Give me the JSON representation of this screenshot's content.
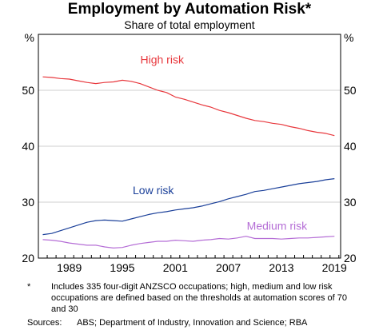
{
  "chart_data": {
    "type": "line",
    "title": "Employment by Automation Risk*",
    "subtitle": "Share of total employment",
    "y_unit_left": "%",
    "y_unit_right": "%",
    "ylim": [
      20,
      60
    ],
    "yticks": [
      "20",
      "30",
      "40",
      "50"
    ],
    "xlim": [
      1986.0,
      2020.2
    ],
    "xticks": [
      "1989",
      "1995",
      "2001",
      "2007",
      "2013",
      "2019"
    ],
    "grid": true,
    "series": [
      {
        "name": "High risk",
        "color": "#e8383d",
        "x": [
          1986.5,
          1987.5,
          1988.5,
          1989.5,
          1990.5,
          1991.5,
          1992.5,
          1993.5,
          1994.5,
          1995.5,
          1996.5,
          1997.5,
          1998.5,
          1999.5,
          2000.5,
          2001.5,
          2002.5,
          2003.5,
          2004.5,
          2005.5,
          2006.5,
          2007.5,
          2008.5,
          2009.5,
          2010.5,
          2011.5,
          2012.5,
          2013.5,
          2014.5,
          2015.5,
          2016.5,
          2017.5,
          2018.5,
          2019.5
        ],
        "values": [
          52.4,
          52.3,
          52.1,
          52.0,
          51.7,
          51.4,
          51.2,
          51.4,
          51.5,
          51.8,
          51.6,
          51.2,
          50.6,
          50.0,
          49.6,
          48.8,
          48.4,
          47.9,
          47.4,
          47.0,
          46.4,
          46.0,
          45.5,
          45.0,
          44.6,
          44.4,
          44.1,
          43.9,
          43.5,
          43.2,
          42.8,
          42.5,
          42.3,
          41.9
        ]
      },
      {
        "name": "Low risk",
        "color": "#1a3f99",
        "x": [
          1986.5,
          1987.5,
          1988.5,
          1989.5,
          1990.5,
          1991.5,
          1992.5,
          1993.5,
          1994.5,
          1995.5,
          1996.5,
          1997.5,
          1998.5,
          1999.5,
          2000.5,
          2001.5,
          2002.5,
          2003.5,
          2004.5,
          2005.5,
          2006.5,
          2007.5,
          2008.5,
          2009.5,
          2010.5,
          2011.5,
          2012.5,
          2013.5,
          2014.5,
          2015.5,
          2016.5,
          2017.5,
          2018.5,
          2019.5
        ],
        "values": [
          24.2,
          24.4,
          24.9,
          25.4,
          25.9,
          26.4,
          26.7,
          26.8,
          26.7,
          26.6,
          27.0,
          27.4,
          27.8,
          28.1,
          28.3,
          28.6,
          28.8,
          29.0,
          29.3,
          29.7,
          30.1,
          30.6,
          31.0,
          31.4,
          31.9,
          32.1,
          32.4,
          32.7,
          33.0,
          33.3,
          33.5,
          33.7,
          34.0,
          34.2
        ]
      },
      {
        "name": "Medium risk",
        "color": "#b56ed6",
        "x": [
          1986.5,
          1987.5,
          1988.5,
          1989.5,
          1990.5,
          1991.5,
          1992.5,
          1993.5,
          1994.5,
          1995.5,
          1996.5,
          1997.5,
          1998.5,
          1999.5,
          2000.5,
          2001.5,
          2002.5,
          2003.5,
          2004.5,
          2005.5,
          2006.5,
          2007.5,
          2008.5,
          2009.5,
          2010.5,
          2011.5,
          2012.5,
          2013.5,
          2014.5,
          2015.5,
          2016.5,
          2017.5,
          2018.5,
          2019.5
        ],
        "values": [
          23.3,
          23.2,
          23.0,
          22.7,
          22.5,
          22.3,
          22.3,
          22.0,
          21.8,
          21.9,
          22.3,
          22.6,
          22.8,
          23.0,
          23.0,
          23.2,
          23.1,
          23.0,
          23.2,
          23.3,
          23.5,
          23.4,
          23.6,
          23.9,
          23.5,
          23.5,
          23.5,
          23.4,
          23.5,
          23.6,
          23.6,
          23.7,
          23.8,
          23.9
        ]
      }
    ]
  },
  "footnote": {
    "mark": "*",
    "text": "Includes 335 four-digit ANZSCO occupations; high, medium and low risk occupations are defined based on the thresholds at automation scores of 70 and 30"
  },
  "sources": {
    "label": "Sources:",
    "text": "ABS; Department of Industry, Innovation and Science; RBA"
  }
}
